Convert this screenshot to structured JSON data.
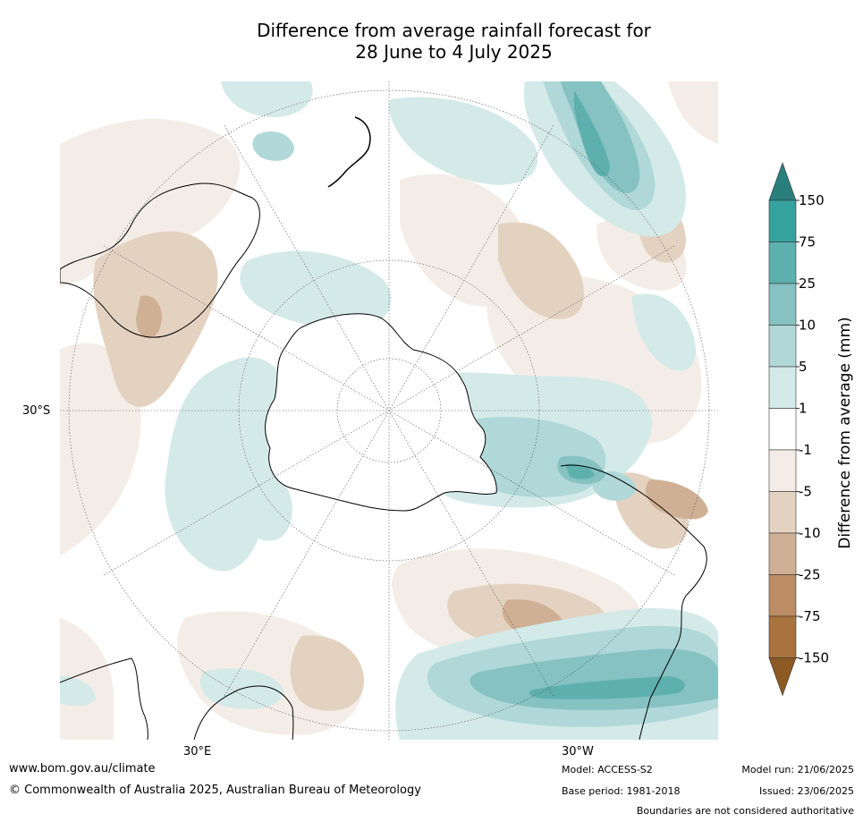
{
  "title_line1": "Difference from average rainfall forecast for",
  "title_line2": "28 June to 4 July 2025",
  "map": {
    "projection": "south-polar-stereographic",
    "lat_label_left": "30°S",
    "lon_label_left": "30°E",
    "lon_label_right": "30°W"
  },
  "colorbar": {
    "title": "Difference from average (mm)",
    "tick_labels": [
      "150",
      "75",
      "25",
      "10",
      "5",
      "1",
      "-1",
      "-5",
      "-10",
      "-25",
      "-75",
      "-150"
    ],
    "colors": [
      "#2a7f7d",
      "#35a29e",
      "#5eb0af",
      "#85c2c1",
      "#b0d8d8",
      "#d4eae9",
      "#ffffff",
      "#f4ede7",
      "#e4d2c1",
      "#d0b095",
      "#bc8d64",
      "#a8733e",
      "#8d5a24"
    ]
  },
  "footer": {
    "website": "www.bom.gov.au/climate",
    "copyright": "© Commonwealth of Australia 2025, Australian Bureau of Meteorology",
    "model": "Model: ACCESS-S2",
    "base_period": "Base period: 1981-2018",
    "model_run": "Model run: 21/06/2025",
    "issued": "Issued: 23/06/2025",
    "disclaimer": "Boundaries are not considered authoritative"
  }
}
